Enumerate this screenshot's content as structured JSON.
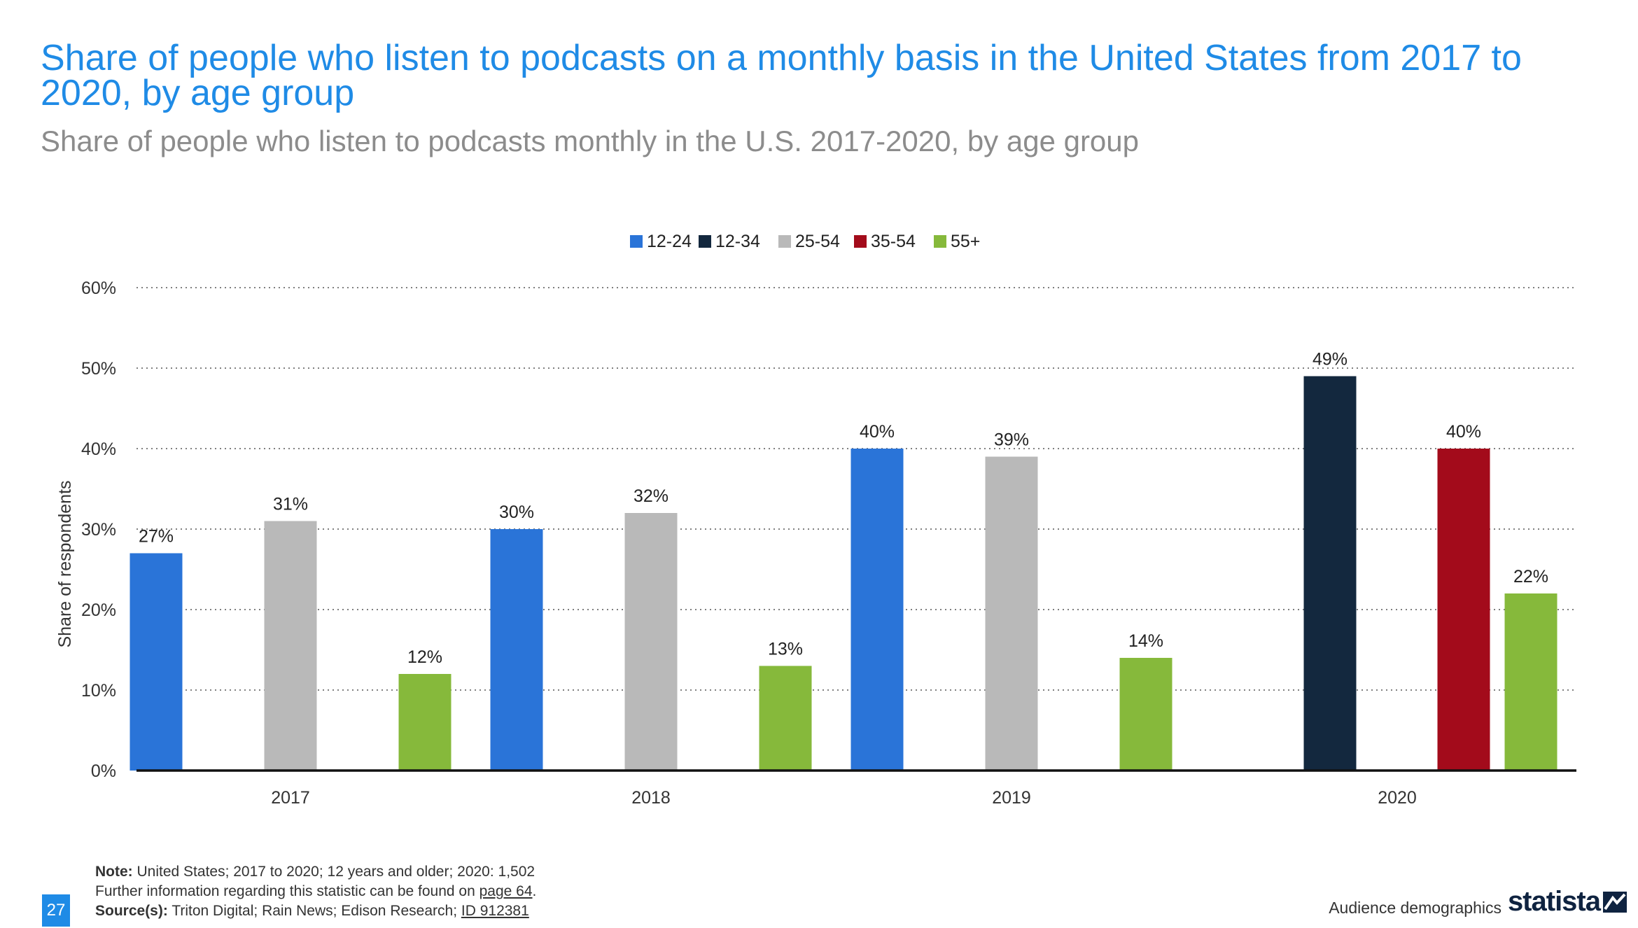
{
  "header": {
    "title": "Share of people who listen to podcasts on a monthly basis in the United States from 2017 to 2020, by age group",
    "subtitle": "Share of people who listen to podcasts monthly in the U.S. 2017-2020, by age group"
  },
  "chart_data": {
    "type": "bar",
    "ylabel": "Share of respondents",
    "ylim": [
      0,
      60
    ],
    "yticks": [
      0,
      10,
      20,
      30,
      40,
      50,
      60
    ],
    "ytick_labels": [
      "0%",
      "10%",
      "20%",
      "30%",
      "40%",
      "50%",
      "60%"
    ],
    "grid": true,
    "legend_position": "top-center",
    "categories": [
      "2017",
      "2018",
      "2019",
      "2020"
    ],
    "series": [
      {
        "name": "12-24",
        "color": "#2a74d8",
        "values": [
          27,
          30,
          40,
          null
        ]
      },
      {
        "name": "12-34",
        "color": "#13283e",
        "values": [
          null,
          null,
          null,
          49
        ]
      },
      {
        "name": "25-54",
        "color": "#b9b9b9",
        "values": [
          31,
          32,
          39,
          null
        ]
      },
      {
        "name": "35-54",
        "color": "#a30b1b",
        "values": [
          null,
          null,
          null,
          40
        ]
      },
      {
        "name": "55+",
        "color": "#86b93b",
        "values": [
          12,
          13,
          14,
          22
        ]
      }
    ],
    "value_suffix": "%"
  },
  "footer": {
    "note_label": "Note:",
    "note_text": " United States; 2017 to 2020; 12 years and older; 2020: 1,502",
    "info_text": "Further information regarding this statistic can be found on ",
    "info_link": "page 64",
    "info_end": ".",
    "source_label": "Source(s):",
    "source_text": " Triton Digital; Rain News; Edison Research; ",
    "source_link": "ID 912381",
    "page_number": "27",
    "section": "Audience demographics",
    "logo_text": "statista"
  }
}
